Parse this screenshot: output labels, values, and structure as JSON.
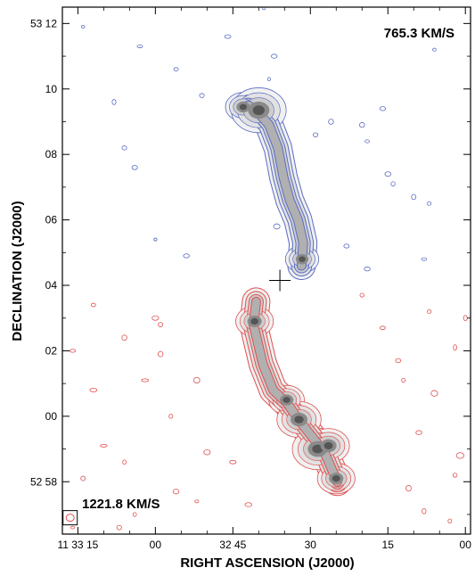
{
  "chart_data": {
    "type": "contour",
    "title": "",
    "xlabel": "RIGHT ASCENSION (J2000)",
    "ylabel": "DECLINATION (J2000)",
    "x_unit": "RA (hh mm ss)",
    "y_unit": "Dec (dd mm)",
    "xlim_ra_seconds_since_11h32m": [
      78,
      -1
    ],
    "ylim_dec_arcmin_since_52d": [
      56.4,
      72.5
    ],
    "x_ticks": [
      {
        "label": "11 33 15",
        "ra_s": 75
      },
      {
        "label": "00",
        "ra_s": 60
      },
      {
        "label": "32 45",
        "ra_s": 45
      },
      {
        "label": "30",
        "ra_s": 30
      },
      {
        "label": "15",
        "ra_s": 15
      },
      {
        "label": "00",
        "ra_s": 0
      }
    ],
    "y_ticks": [
      {
        "label": "53 12",
        "dec_arcmin": 72
      },
      {
        "label": "10",
        "dec_arcmin": 70
      },
      {
        "label": "08",
        "dec_arcmin": 68
      },
      {
        "label": "06",
        "dec_arcmin": 66
      },
      {
        "label": "04",
        "dec_arcmin": 64
      },
      {
        "label": "02",
        "dec_arcmin": 62
      },
      {
        "label": "00",
        "dec_arcmin": 60
      },
      {
        "label": "52 58",
        "dec_arcmin": 58
      }
    ],
    "minor_x_ra_s": [
      70,
      65,
      55,
      50,
      40,
      35,
      25,
      20,
      10,
      5
    ],
    "minor_y_dec_arcmin": [
      71,
      69,
      67,
      65,
      63,
      61,
      59,
      57
    ],
    "series": [
      {
        "name": "765.3 KM/S",
        "color": "#5a6cc4",
        "spine": [
          [
            42.0,
            69.5
          ],
          [
            40.5,
            69.35
          ],
          [
            38.0,
            68.9
          ],
          [
            36.3,
            68.2
          ],
          [
            35.2,
            67.3
          ],
          [
            34.0,
            66.6
          ],
          [
            32.4,
            66.0
          ],
          [
            31.4,
            65.3
          ],
          [
            31.7,
            64.6
          ]
        ],
        "blobs": [
          {
            "ra_s": 43.0,
            "dec_arcmin": 69.45,
            "peak": 0.55
          },
          {
            "ra_s": 40.0,
            "dec_arcmin": 69.35,
            "peak": 1.0
          },
          {
            "ra_s": 31.6,
            "dec_arcmin": 64.8,
            "peak": 0.5
          }
        ]
      },
      {
        "name": "1221.8 KM/S",
        "color": "#e05050",
        "spine": [
          [
            40.5,
            63.5
          ],
          [
            41.0,
            62.8
          ],
          [
            39.2,
            61.6
          ],
          [
            37.2,
            60.8
          ],
          [
            34.5,
            60.4
          ],
          [
            32.3,
            59.9
          ],
          [
            28.8,
            59.2
          ],
          [
            27.0,
            58.8
          ],
          [
            24.8,
            58.0
          ]
        ],
        "blobs": [
          {
            "ra_s": 40.8,
            "dec_arcmin": 62.9,
            "peak": 0.6
          },
          {
            "ra_s": 34.6,
            "dec_arcmin": 60.5,
            "peak": 0.55
          },
          {
            "ra_s": 32.2,
            "dec_arcmin": 59.9,
            "peak": 0.75
          },
          {
            "ra_s": 28.6,
            "dec_arcmin": 59.0,
            "peak": 0.9
          },
          {
            "ra_s": 26.5,
            "dec_arcmin": 59.1,
            "peak": 0.7
          },
          {
            "ra_s": 25.0,
            "dec_arcmin": 58.1,
            "peak": 0.6
          }
        ]
      }
    ],
    "center_cross": {
      "ra_s": 35.9,
      "dec_arcmin": 64.15
    },
    "beam": {
      "ra_s": 76.5,
      "dec_arcmin": 56.9
    },
    "velocity_labels": [
      {
        "text": "765.3 KM/S",
        "corner": "top-right"
      },
      {
        "text": "1221.8 KM/S",
        "corner": "bottom-left"
      }
    ],
    "noise_contours": {
      "blue": [
        [
          74,
          71.9
        ],
        [
          63,
          71.3
        ],
        [
          42,
          72.7
        ],
        [
          56,
          70.6
        ],
        [
          68,
          69.6
        ],
        [
          37,
          71.0
        ],
        [
          64,
          67.6
        ],
        [
          66,
          68.2
        ],
        [
          51,
          69.8
        ],
        [
          29,
          68.6
        ],
        [
          38,
          70.3
        ],
        [
          26,
          69.0
        ],
        [
          20,
          68.9
        ],
        [
          19,
          68.4
        ],
        [
          15,
          67.4
        ],
        [
          14,
          67.1
        ],
        [
          10,
          66.7
        ],
        [
          7,
          66.5
        ],
        [
          36.5,
          65.8
        ],
        [
          23,
          65.2
        ],
        [
          19,
          64.5
        ],
        [
          54,
          64.9
        ],
        [
          60,
          65.4
        ],
        [
          8,
          64.8
        ],
        [
          46,
          71.6
        ],
        [
          39,
          72.5
        ],
        [
          16,
          69.4
        ],
        [
          6,
          71.2
        ]
      ],
      "red": [
        [
          72,
          63.4
        ],
        [
          66,
          62.4
        ],
        [
          59,
          62.8
        ],
        [
          62,
          61.1
        ],
        [
          76,
          62.0
        ],
        [
          72,
          60.8
        ],
        [
          52,
          61.1
        ],
        [
          57,
          60.0
        ],
        [
          70,
          59.1
        ],
        [
          66,
          58.6
        ],
        [
          74,
          58.1
        ],
        [
          50,
          58.9
        ],
        [
          56,
          57.7
        ],
        [
          52,
          57.4
        ],
        [
          64,
          57.0
        ],
        [
          20,
          63.7
        ],
        [
          16,
          62.7
        ],
        [
          13,
          61.7
        ],
        [
          7,
          63.2
        ],
        [
          2,
          62.1
        ],
        [
          0,
          63.0
        ],
        [
          9,
          59.5
        ],
        [
          6,
          60.7
        ],
        [
          2,
          58.2
        ],
        [
          8,
          57.1
        ],
        [
          3,
          56.8
        ],
        [
          1,
          58.8
        ],
        [
          12,
          61.1
        ],
        [
          60,
          63.0
        ],
        [
          67,
          56.6
        ],
        [
          45,
          58.6
        ],
        [
          42,
          57.3
        ],
        [
          11,
          57.8
        ],
        [
          76,
          56.6
        ],
        [
          59,
          61.9
        ]
      ]
    }
  }
}
